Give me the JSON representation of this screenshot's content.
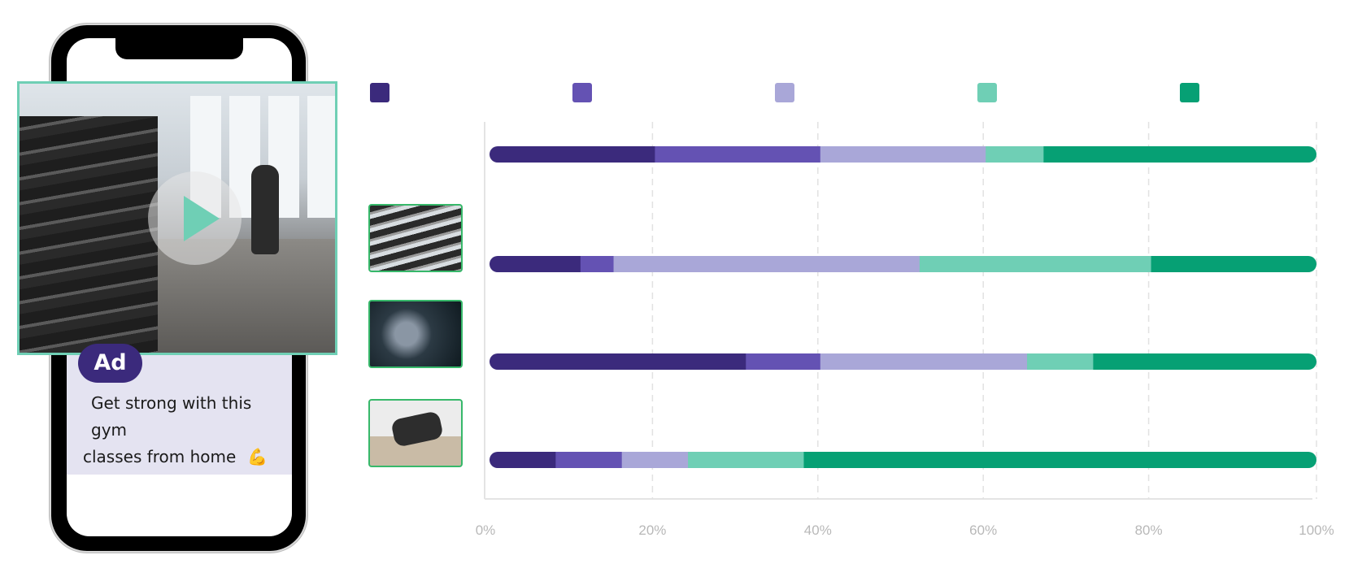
{
  "ad": {
    "badge": "Ad",
    "line1": "Get strong with this gym",
    "line2": "classes from home",
    "emoji": "💪"
  },
  "colors": {
    "series": [
      "#3b2a7c",
      "#6452b3",
      "#a9a7d8",
      "#6fcfb5",
      "#06a074"
    ],
    "accent": "#6fcfb5",
    "thumb_border": "#37b86a"
  },
  "icons": {
    "play": "play-icon"
  },
  "chart_data": {
    "type": "bar",
    "orientation": "horizontal",
    "stacked": true,
    "normalized": true,
    "categories": [
      "",
      "",
      "",
      ""
    ],
    "series": [
      {
        "name": "",
        "values": [
          20,
          11,
          31,
          8
        ]
      },
      {
        "name": "",
        "values": [
          20,
          4,
          9,
          8
        ]
      },
      {
        "name": "",
        "values": [
          20,
          37,
          25,
          8
        ]
      },
      {
        "name": "",
        "values": [
          7,
          28,
          8,
          14
        ]
      },
      {
        "name": "",
        "values": [
          33,
          20,
          27,
          62
        ]
      }
    ],
    "xlim": [
      0,
      100
    ],
    "xticks": [
      "0%",
      "20%",
      "40%",
      "60%",
      "80%",
      "100%"
    ],
    "grid": "vertical-dashed",
    "legend": "top",
    "title": "",
    "xlabel": "",
    "ylabel": ""
  }
}
